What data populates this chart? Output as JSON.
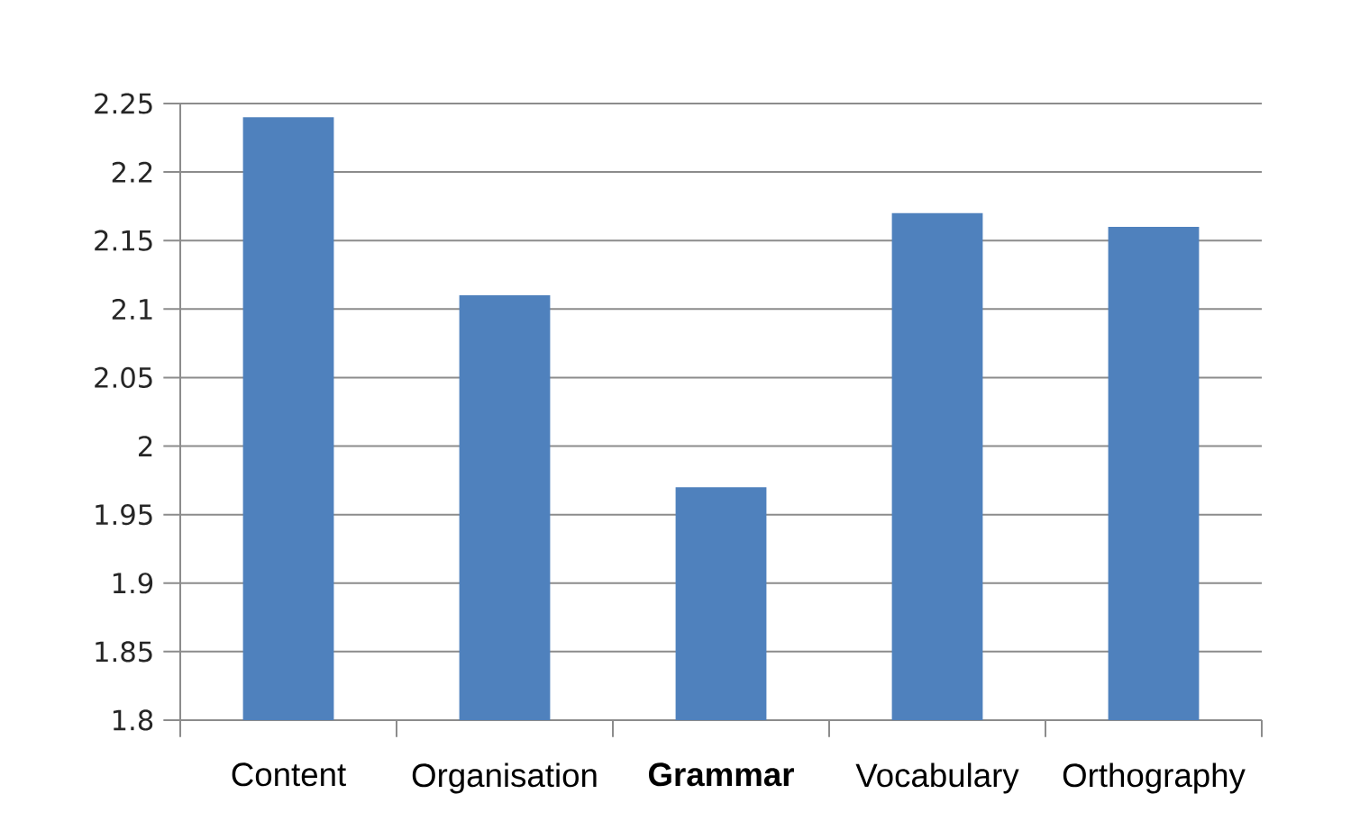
{
  "chart_data": {
    "type": "bar",
    "categories": [
      "Content",
      "Organisation",
      "**Grammar**",
      "Vocabulary",
      "Orthography"
    ],
    "values": [
      2.24,
      2.11,
      1.97,
      2.17,
      2.16
    ],
    "color": "#4f81bd",
    "ylim": [
      1.8,
      2.25
    ],
    "yticks": [
      1.8,
      1.85,
      1.9,
      1.95,
      2,
      2.05,
      2.1,
      2.15,
      2.2,
      2.25
    ],
    "grid": "y"
  }
}
